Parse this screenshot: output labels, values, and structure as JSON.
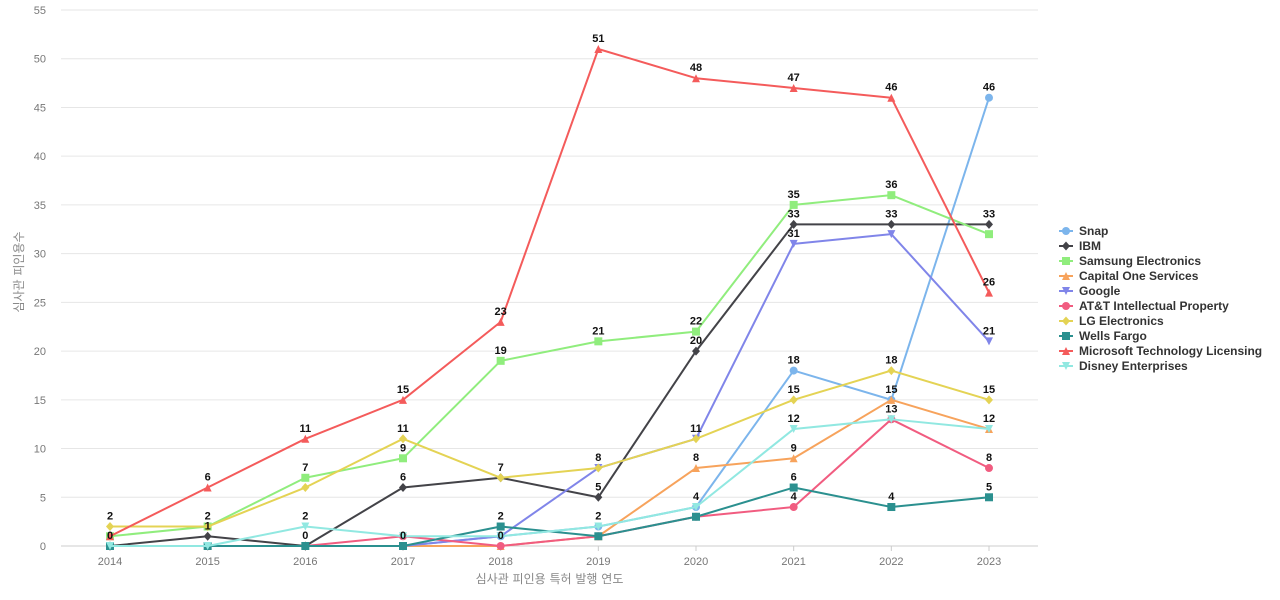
{
  "chart_data": {
    "type": "line",
    "title": "",
    "xlabel": "심사관 피인용 특허 발행 연도",
    "ylabel": "심사관 피인용수",
    "x": [
      "2014",
      "2015",
      "2016",
      "2017",
      "2018",
      "2019",
      "2020",
      "2021",
      "2022",
      "2023"
    ],
    "ylim": [
      0,
      55
    ],
    "yticks": [
      0,
      5,
      10,
      15,
      20,
      25,
      30,
      35,
      40,
      45,
      50,
      55
    ],
    "grid": true,
    "legend_position": "right",
    "series": [
      {
        "name": "Snap",
        "color": "#7cb5ec",
        "marker": "circle",
        "values": [
          0,
          0,
          0,
          0,
          1,
          2,
          4,
          18,
          15,
          46
        ],
        "labels": [
          null,
          null,
          null,
          null,
          null,
          null,
          null,
          "18",
          null,
          "46"
        ]
      },
      {
        "name": "IBM",
        "color": "#434348",
        "marker": "diamond",
        "values": [
          0,
          1,
          0,
          6,
          7,
          5,
          20,
          33,
          33,
          33
        ],
        "labels": [
          "0",
          "1",
          "0",
          "6",
          "7",
          "5",
          "20",
          "33",
          "33",
          "33"
        ]
      },
      {
        "name": "Samsung Electronics",
        "color": "#90ed7d",
        "marker": "square",
        "values": [
          1,
          2,
          7,
          9,
          19,
          21,
          22,
          35,
          36,
          32
        ],
        "labels": [
          null,
          null,
          "7",
          "9",
          "19",
          "21",
          "22",
          "35",
          "36",
          null
        ]
      },
      {
        "name": "Capital One Services",
        "color": "#f7a35c",
        "marker": "triangle",
        "values": [
          0,
          0,
          0,
          0,
          0,
          1,
          8,
          9,
          15,
          12
        ],
        "labels": [
          null,
          null,
          null,
          null,
          null,
          null,
          "8",
          "9",
          "15",
          "12"
        ]
      },
      {
        "name": "Google",
        "color": "#8085e9",
        "marker": "triangle-down",
        "values": [
          0,
          0,
          0,
          0,
          1,
          8,
          11,
          31,
          32,
          21
        ],
        "labels": [
          null,
          null,
          null,
          null,
          null,
          null,
          null,
          "31",
          null,
          "21"
        ]
      },
      {
        "name": "AT&T Intellectual Property",
        "color": "#f15c80",
        "marker": "circle",
        "values": [
          0,
          0,
          0,
          1,
          0,
          1,
          3,
          4,
          13,
          8
        ],
        "labels": [
          null,
          null,
          null,
          null,
          "0",
          null,
          null,
          "4",
          "13",
          "8"
        ]
      },
      {
        "name": "LG Electronics",
        "color": "#e4d354",
        "marker": "diamond",
        "values": [
          2,
          2,
          6,
          11,
          7,
          8,
          11,
          15,
          18,
          15
        ],
        "labels": [
          "2",
          "2",
          null,
          "11",
          null,
          "8",
          "11",
          "15",
          "18",
          "15"
        ]
      },
      {
        "name": "Wells Fargo",
        "color": "#2b908f",
        "marker": "square",
        "values": [
          0,
          0,
          0,
          0,
          2,
          1,
          3,
          6,
          4,
          5
        ],
        "labels": [
          null,
          null,
          null,
          "0",
          "2",
          null,
          null,
          "6",
          "4",
          "5"
        ]
      },
      {
        "name": "Microsoft Technology Licensing",
        "color": "#f45b5b",
        "marker": "triangle",
        "values": [
          1,
          6,
          11,
          15,
          23,
          51,
          48,
          47,
          46,
          26
        ],
        "labels": [
          null,
          "6",
          "11",
          "15",
          "23",
          "51",
          "48",
          "47",
          "46",
          "26"
        ]
      },
      {
        "name": "Disney Enterprises",
        "color": "#91e8e1",
        "marker": "triangle-down",
        "values": [
          0,
          0,
          2,
          1,
          1,
          2,
          4,
          12,
          13,
          12
        ],
        "labels": [
          null,
          null,
          "2",
          null,
          null,
          "2",
          "4",
          "12",
          null,
          null
        ]
      }
    ]
  }
}
